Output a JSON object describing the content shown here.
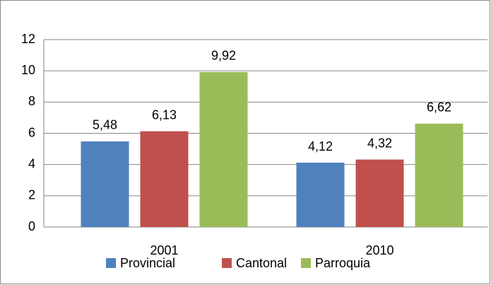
{
  "chart_data": {
    "type": "bar",
    "categories": [
      "2001",
      "2010"
    ],
    "series": [
      {
        "name": "Provincial",
        "color": "#4f81bd",
        "values": [
          5.48,
          4.12
        ],
        "value_labels": [
          "5,48",
          "4,12"
        ]
      },
      {
        "name": "Cantonal",
        "color": "#c0504d",
        "values": [
          6.13,
          4.32
        ],
        "value_labels": [
          "6,13",
          "4,32"
        ]
      },
      {
        "name": "Parroquia",
        "color": "#9bbb59",
        "values": [
          9.92,
          6.62
        ],
        "value_labels": [
          "9,92",
          "6,62"
        ]
      }
    ],
    "ylim": [
      0,
      12
    ],
    "yticks": [
      0,
      2,
      4,
      6,
      8,
      10,
      12
    ],
    "grid": true,
    "legend": "bottom"
  }
}
